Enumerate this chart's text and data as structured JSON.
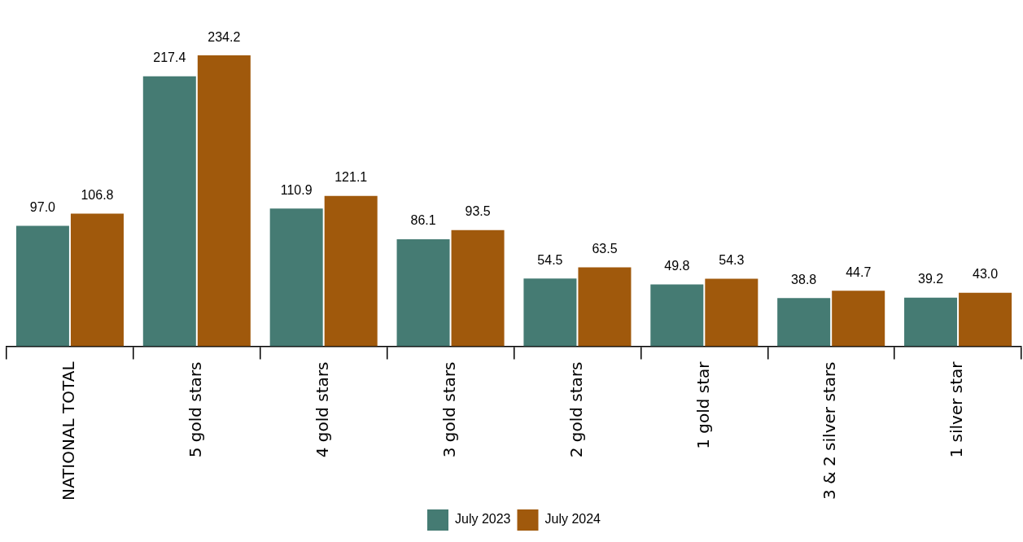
{
  "chart_data": {
    "type": "bar",
    "categories": [
      "NATIONAL TOTAL",
      "5 gold stars",
      "4 gold stars",
      "3 gold stars",
      "2 gold stars",
      "1 gold star",
      "3 & 2 silver stars",
      "1 silver star"
    ],
    "series": [
      {
        "name": "July 2023",
        "color": "#457b73",
        "values": [
          97.0,
          217.4,
          110.9,
          86.1,
          54.5,
          49.8,
          38.8,
          39.2
        ],
        "value_labels": [
          "97.0",
          "217.4",
          "110.9",
          "86.1",
          "54.5",
          "49.8",
          "38.8",
          "39.2"
        ]
      },
      {
        "name": "July 2024",
        "color": "#a0590c",
        "values": [
          106.8,
          234.2,
          121.1,
          93.5,
          63.5,
          54.3,
          44.7,
          43.0
        ],
        "value_labels": [
          "106.8",
          "234.2",
          "121.1",
          "93.5",
          "63.5",
          "54.3",
          "44.7",
          "43.0"
        ]
      }
    ],
    "tick_labels": "x",
    "grid": false,
    "legend": "bottom"
  }
}
